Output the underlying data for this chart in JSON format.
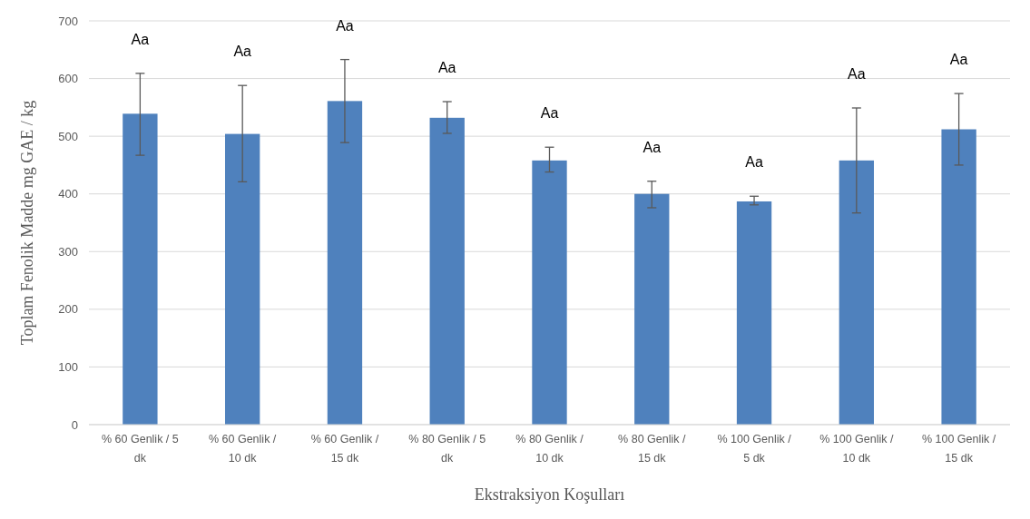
{
  "chart_data": {
    "type": "bar",
    "xlabel": "Ekstraksiyon  Koşulları",
    "ylabel": "Toplam  Fenolik  Madde mg GAE / kg",
    "categories": [
      "% 60 Genlik / 5 dk",
      "% 60 Genlik / 10 dk",
      "% 60 Genlik / 15 dk",
      "% 80 Genlik / 5 dk",
      "% 80 Genlik / 10 dk",
      "% 80 Genlik / 15 dk",
      "% 100 Genlik / 5 dk",
      "% 100 Genlik / 10 dk",
      "% 100 Genlik / 15 dk"
    ],
    "values": [
      539,
      504,
      561,
      532,
      458,
      400,
      387,
      458,
      512
    ],
    "errors": [
      [
        467,
        609
      ],
      [
        421,
        588
      ],
      [
        489,
        633
      ],
      [
        505,
        560
      ],
      [
        438,
        481
      ],
      [
        376,
        422
      ],
      [
        381,
        396
      ],
      [
        367,
        549
      ],
      [
        450,
        574
      ]
    ],
    "color": "#4f81bd",
    "ylim": [
      0,
      700
    ],
    "yticks": [
      0,
      100,
      200,
      300,
      400,
      500,
      600,
      700
    ],
    "grid": "y",
    "annotations": [
      "Aa",
      "Aa",
      "Aa",
      "Aa",
      "Aa",
      "Aa",
      "Aa",
      "Aa",
      "Aa"
    ]
  }
}
